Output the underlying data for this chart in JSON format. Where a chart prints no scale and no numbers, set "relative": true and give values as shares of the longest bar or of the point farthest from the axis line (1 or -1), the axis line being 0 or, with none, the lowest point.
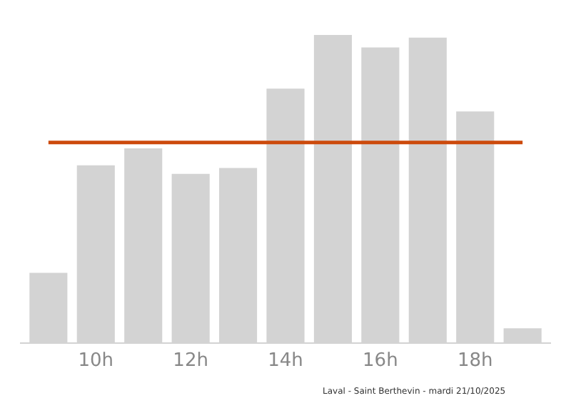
{
  "chart_data": {
    "type": "bar",
    "relative": true,
    "categories": [
      null,
      "10h",
      null,
      "12h",
      null,
      "14h",
      null,
      "16h",
      null,
      "18h",
      null
    ],
    "values": [
      0.226,
      0.576,
      0.631,
      0.548,
      0.567,
      0.825,
      1,
      0.959,
      0.991,
      0.751,
      0.046
    ],
    "color": "#d3d3d3",
    "ref_lines": [
      {
        "axis": "y",
        "value": 0.65,
        "color": "#cc4a0c"
      }
    ],
    "annotations": [
      "Laval - Saint Berthevin - mardi 21/10/2025"
    ]
  }
}
